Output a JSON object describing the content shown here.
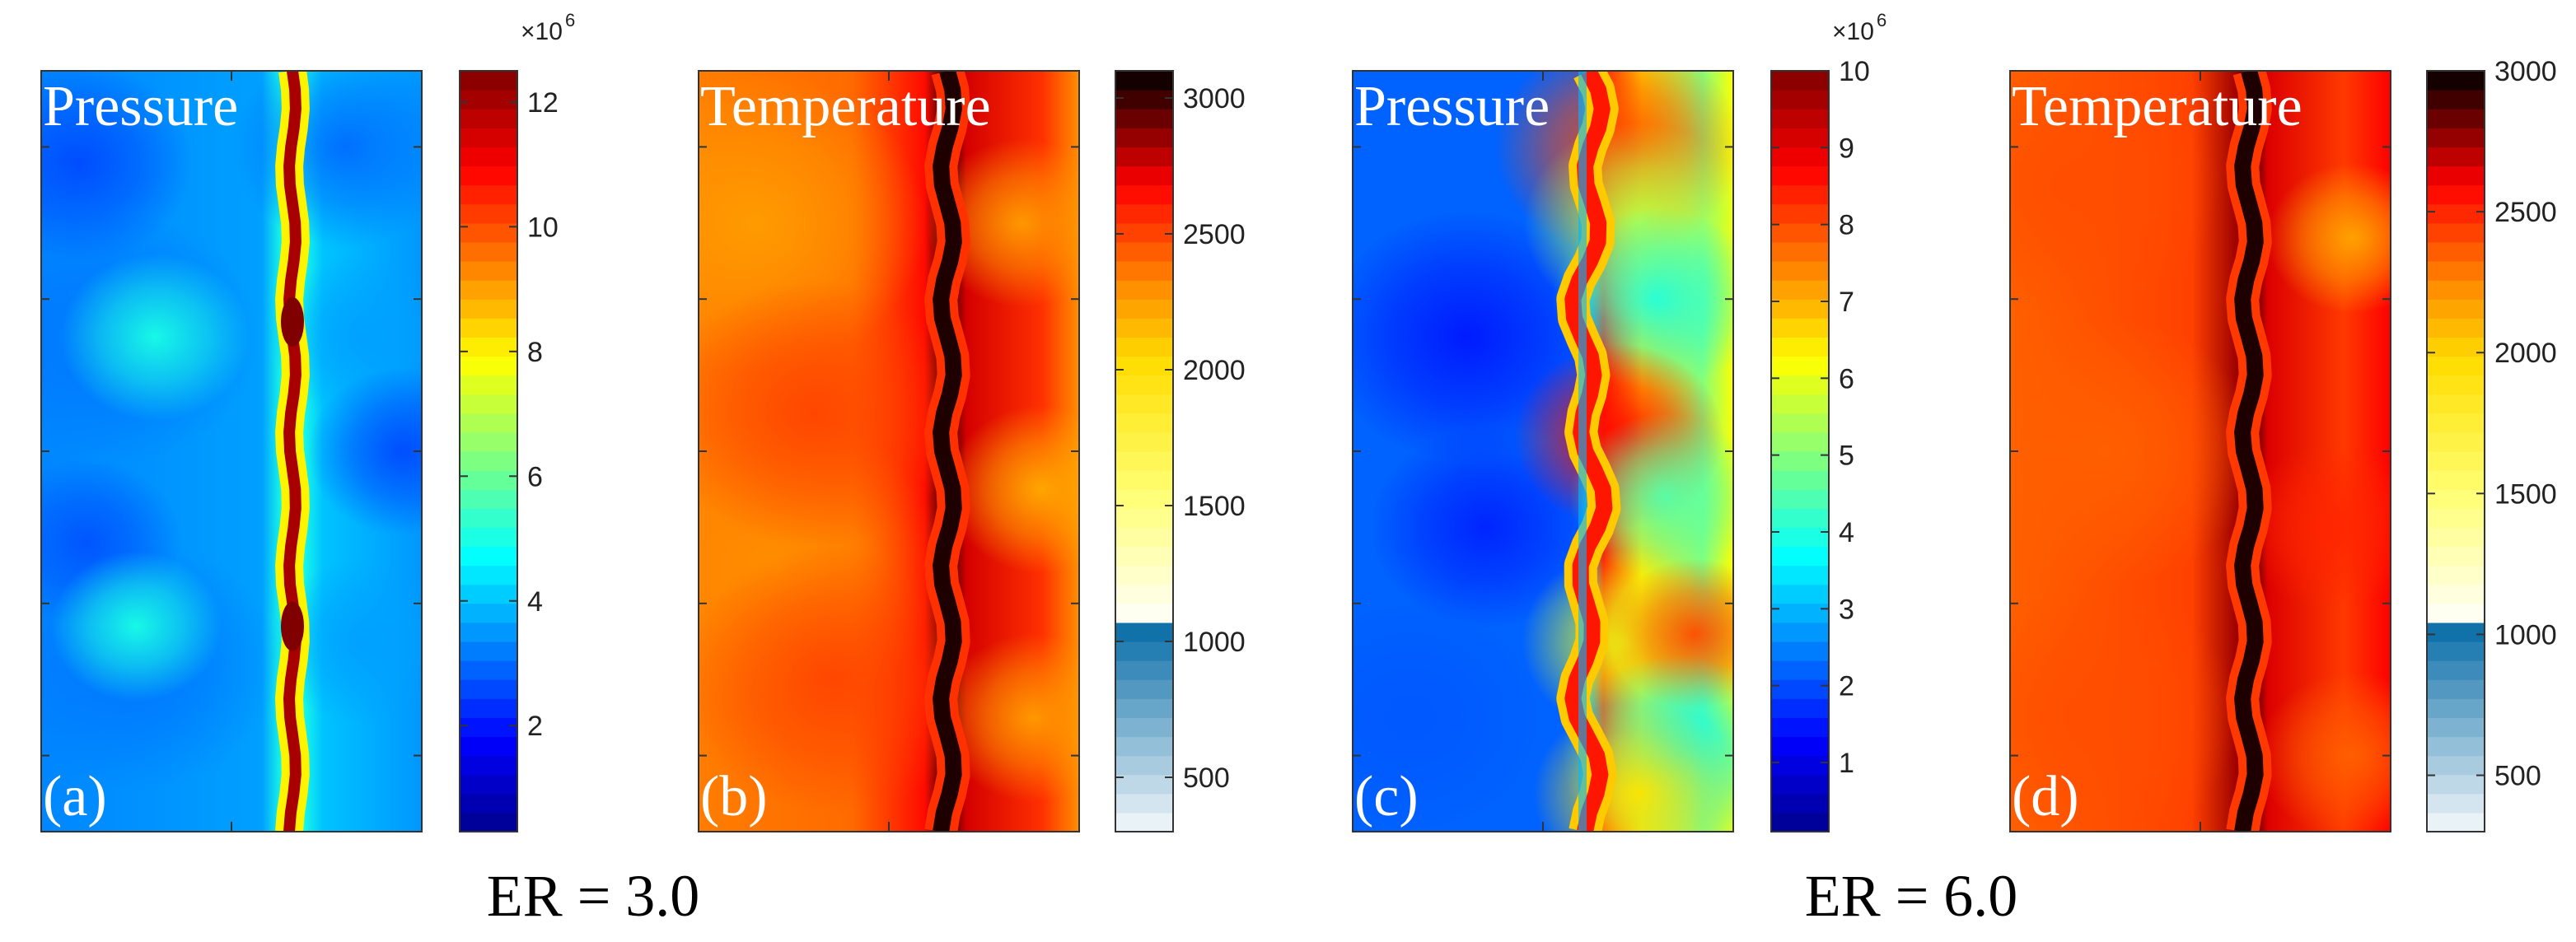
{
  "chart_data": [
    {
      "type": "heatmap",
      "panel_label": "(a)",
      "title": "Pressure",
      "case": "ER = 3.0",
      "colorbar": {
        "exponent_label": "×10",
        "exponent_power": "6",
        "min": 0.3,
        "max": 12.5,
        "ticks": [
          2,
          4,
          6,
          8,
          10,
          12
        ],
        "tick_labels": [
          "2",
          "4",
          "6",
          "8",
          "10",
          "12"
        ],
        "colormap": "jet"
      },
      "field": {
        "front_peak": 12.0,
        "hotspot_peak": 12.5,
        "burned_level": 4.0,
        "unburned_level": 3.3
      }
    },
    {
      "type": "heatmap",
      "panel_label": "(b)",
      "title": "Temperature",
      "case": "ER = 3.0",
      "colorbar": {
        "min": 300,
        "max": 3100,
        "ticks": [
          500,
          1000,
          1500,
          2000,
          2500,
          3000
        ],
        "tick_labels": [
          "500",
          "1000",
          "1500",
          "2000",
          "2500",
          "3000"
        ],
        "colormap": "temperature"
      },
      "field": {
        "front_peak": 3050,
        "burned_level": 2400,
        "unburned_level": 2350
      }
    },
    {
      "type": "heatmap",
      "panel_label": "(c)",
      "title": "Pressure",
      "case": "ER = 6.0",
      "colorbar": {
        "exponent_label": "×10",
        "exponent_power": "6",
        "min": 0.1,
        "max": 10,
        "ticks": [
          1,
          2,
          3,
          4,
          5,
          6,
          7,
          8,
          9,
          10
        ],
        "tick_labels": [
          "1",
          "2",
          "3",
          "4",
          "5",
          "6",
          "7",
          "8",
          "9",
          "10"
        ],
        "colormap": "jet"
      },
      "field": {
        "front_peak": 8.5,
        "burned_level": 5.0,
        "unburned_level": 1.8
      }
    },
    {
      "type": "heatmap",
      "panel_label": "(d)",
      "title": "Temperature",
      "case": "ER = 6.0",
      "colorbar": {
        "min": 300,
        "max": 3000,
        "ticks": [
          500,
          1000,
          1500,
          2000,
          2500,
          3000
        ],
        "tick_labels": [
          "500",
          "1000",
          "1500",
          "2000",
          "2500",
          "3000"
        ],
        "colormap": "temperature"
      },
      "field": {
        "front_peak": 2950,
        "burned_level": 2450,
        "unburned_level": 2350
      }
    }
  ],
  "labels": {
    "er_left": "ER = 3.0",
    "er_right": "ER = 6.0"
  }
}
